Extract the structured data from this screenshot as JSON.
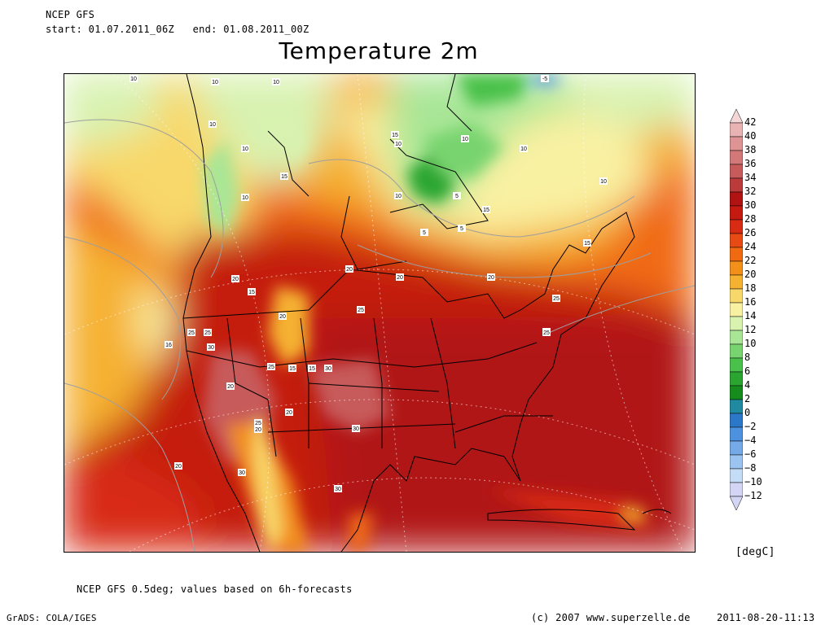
{
  "header": {
    "model": "NCEP GFS",
    "period": "start: 01.07.2011_06Z   end: 01.08.2011_00Z",
    "title": "Temperature 2m"
  },
  "footer": {
    "note": "NCEP GFS 0.5deg; values based on 6h-forecasts",
    "software": "GrADS: COLA/IGES",
    "copyright": "(c) 2007 www.superzelle.de",
    "timestamp": "2011-08-20-11:13"
  },
  "legend": {
    "unit": "[degC]",
    "levels": [
      42,
      40,
      38,
      36,
      34,
      32,
      30,
      28,
      26,
      24,
      22,
      20,
      18,
      16,
      14,
      12,
      10,
      8,
      6,
      4,
      2,
      0,
      -2,
      -4,
      -6,
      -8,
      -10,
      -12
    ],
    "colors": [
      "#f4d6d6",
      "#eab3b3",
      "#de9494",
      "#d27878",
      "#c75a5a",
      "#bb3a3a",
      "#b11212",
      "#c41a10",
      "#d82b13",
      "#e84a14",
      "#f06a12",
      "#f3901a",
      "#f5b130",
      "#f8d86a",
      "#f9f1a2",
      "#d8f2b0",
      "#a8e696",
      "#78d46e",
      "#49c14a",
      "#2aa630",
      "#168c1c",
      "#1f8aa0",
      "#2c78c8",
      "#4c92de",
      "#74aae8",
      "#9cc4f0",
      "#c4dcf6",
      "#d4d4f4"
    ]
  },
  "map": {
    "contour_labels": [
      "10",
      "10",
      "10",
      "10",
      "10",
      "10",
      "10",
      "-5",
      "5",
      "10",
      "5",
      "10",
      "15",
      "15",
      "15",
      "15",
      "10",
      "10",
      "5",
      "20",
      "20",
      "20",
      "20",
      "15",
      "15",
      "25",
      "25",
      "16",
      "25",
      "20",
      "15",
      "25",
      "30",
      "25",
      "20",
      "20",
      "30",
      "25",
      "20",
      "25",
      "30",
      "30",
      "30",
      "20",
      "25"
    ]
  }
}
